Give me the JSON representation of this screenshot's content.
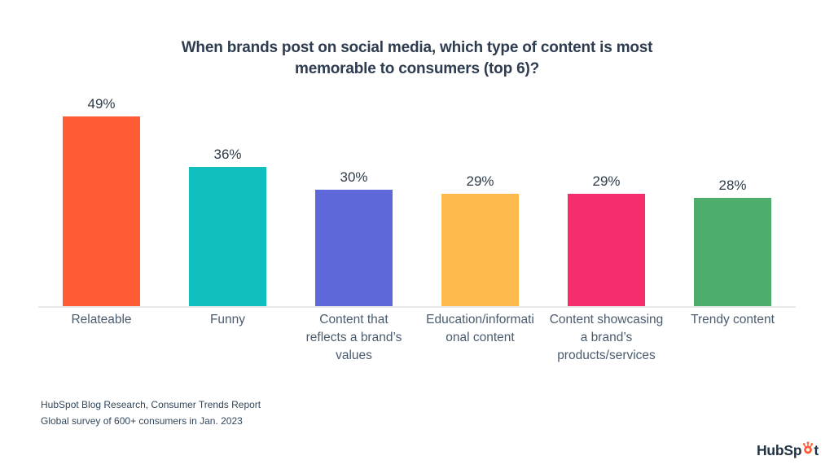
{
  "title": {
    "lines": [
      "When brands post on social media, which type of content is most",
      "memorable to consumers (top 6)?"
    ]
  },
  "chart_data": {
    "type": "bar",
    "title": "When brands post on social media, which type of content is most memorable to consumers (top 6)?",
    "categories": [
      "Relateable",
      "Funny",
      "Content that reflects a brand’s values",
      "Education/informational content",
      "Content showcasing a brand’s products/services",
      "Trendy content"
    ],
    "categories_display": [
      [
        "Relateable"
      ],
      [
        "Funny"
      ],
      [
        "Content that",
        "reflects a brand’s",
        "values"
      ],
      [
        "Education/informati",
        "onal content"
      ],
      [
        "Content showcasing",
        "a brand’s",
        "products/services"
      ],
      [
        "Trendy content"
      ]
    ],
    "values": [
      49,
      36,
      30,
      29,
      29,
      28
    ],
    "value_labels": [
      "49%",
      "36%",
      "30%",
      "29%",
      "29%",
      "28%"
    ],
    "bar_colors": [
      "#FF5C35",
      "#12BFBF",
      "#5F68D8",
      "#FFBA4D",
      "#F62D6D",
      "#4FAD6C"
    ],
    "xlabel": "",
    "ylabel": "",
    "ylim": [
      0,
      49
    ],
    "grid": false,
    "legend": false,
    "data_labels": "above bars, percent format"
  },
  "source": {
    "line1": "HubSpot Blog Research, Consumer Trends Report",
    "line2": "Global survey of 600+ consumers in Jan. 2023"
  },
  "logo": {
    "prefix": "HubSp",
    "suffix": "t",
    "icon": "hubspot-sprocket",
    "text_color": "#213343",
    "accent_color": "#FF5C35"
  }
}
